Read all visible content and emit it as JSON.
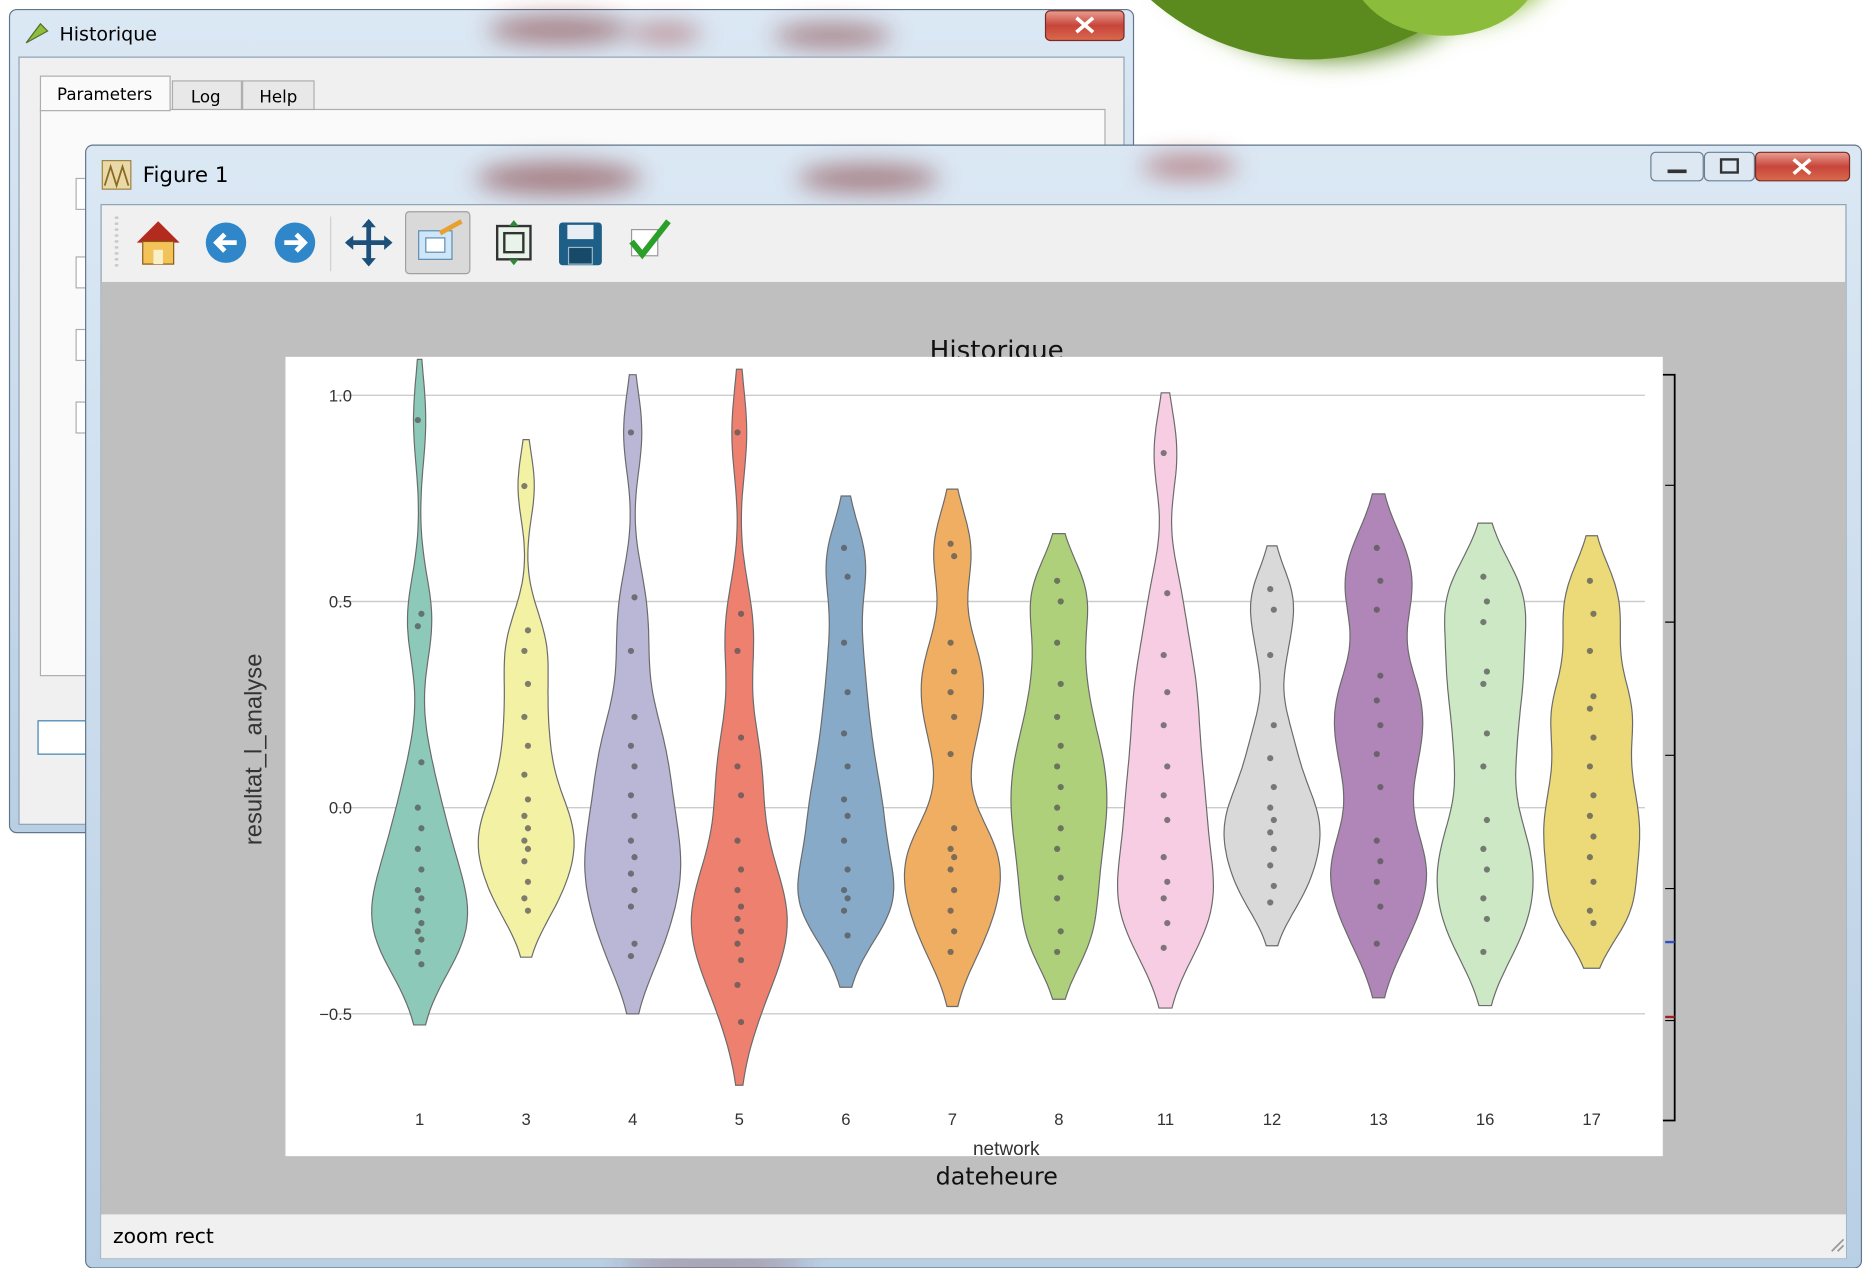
{
  "historique_window": {
    "title": "Historique",
    "tabs": [
      "Parameters",
      "Log",
      "Help"
    ]
  },
  "figure_window": {
    "title": "Figure 1",
    "status": "zoom rect",
    "figure_title": "Historique",
    "figure_xlabel": "dateheure"
  },
  "chart_data": {
    "type": "violin",
    "xlabel": "network",
    "ylabel": "resultat_l_analyse",
    "categories": [
      "1",
      "3",
      "4",
      "5",
      "6",
      "7",
      "8",
      "11",
      "12",
      "13",
      "16",
      "17"
    ],
    "colors": [
      "#8dc9b8",
      "#f3f1a4",
      "#bab6d6",
      "#ee8070",
      "#86aac8",
      "#efae62",
      "#afd07a",
      "#f6cde2",
      "#d9d9d9",
      "#b086b8",
      "#cde8c5",
      "#ecd977"
    ],
    "values": [
      [
        0.94,
        0.47,
        0.44,
        0.11,
        0.0,
        -0.05,
        -0.1,
        -0.15,
        -0.2,
        -0.22,
        -0.25,
        -0.28,
        -0.3,
        -0.32,
        -0.35,
        -0.38
      ],
      [
        0.78,
        0.43,
        0.38,
        0.3,
        0.22,
        0.15,
        0.08,
        0.02,
        -0.02,
        -0.05,
        -0.08,
        -0.1,
        -0.13,
        -0.18,
        -0.22,
        -0.25
      ],
      [
        0.91,
        0.51,
        0.38,
        0.22,
        0.15,
        0.1,
        0.03,
        -0.02,
        -0.08,
        -0.12,
        -0.16,
        -0.2,
        -0.24,
        -0.33,
        -0.36
      ],
      [
        0.91,
        0.47,
        0.38,
        0.17,
        0.1,
        0.03,
        -0.08,
        -0.15,
        -0.2,
        -0.24,
        -0.27,
        -0.3,
        -0.33,
        -0.37,
        -0.43,
        -0.52
      ],
      [
        0.63,
        0.56,
        0.4,
        0.28,
        0.18,
        0.1,
        0.02,
        -0.02,
        -0.08,
        -0.15,
        -0.2,
        -0.22,
        -0.25,
        -0.31
      ],
      [
        0.64,
        0.61,
        0.4,
        0.33,
        0.28,
        0.22,
        0.13,
        -0.05,
        -0.1,
        -0.12,
        -0.15,
        -0.2,
        -0.25,
        -0.3,
        -0.35
      ],
      [
        0.55,
        0.5,
        0.4,
        0.3,
        0.22,
        0.15,
        0.1,
        0.05,
        0.0,
        -0.05,
        -0.1,
        -0.17,
        -0.22,
        -0.3,
        -0.35
      ],
      [
        0.86,
        0.52,
        0.37,
        0.28,
        0.2,
        0.1,
        0.03,
        -0.03,
        -0.12,
        -0.18,
        -0.22,
        -0.28,
        -0.34
      ],
      [
        0.53,
        0.48,
        0.37,
        0.2,
        0.12,
        0.05,
        0.0,
        -0.03,
        -0.06,
        -0.1,
        -0.14,
        -0.19,
        -0.23
      ],
      [
        0.63,
        0.55,
        0.48,
        0.32,
        0.26,
        0.2,
        0.13,
        0.05,
        -0.08,
        -0.13,
        -0.18,
        -0.24,
        -0.33
      ],
      [
        0.56,
        0.5,
        0.45,
        0.33,
        0.3,
        0.18,
        0.1,
        -0.03,
        -0.1,
        -0.15,
        -0.22,
        -0.27,
        -0.35
      ],
      [
        0.55,
        0.47,
        0.38,
        0.27,
        0.24,
        0.17,
        0.1,
        0.03,
        -0.02,
        -0.07,
        -0.12,
        -0.18,
        -0.25,
        -0.28
      ]
    ],
    "ylim": [
      -0.75,
      1.05
    ],
    "yticks": [
      {
        "value": -0.5,
        "label": "−0.5"
      },
      {
        "value": 0,
        "label": "0.0"
      },
      {
        "value": 0.5,
        "label": "0.5"
      },
      {
        "value": 1,
        "label": "1.0"
      }
    ],
    "grid": true
  }
}
